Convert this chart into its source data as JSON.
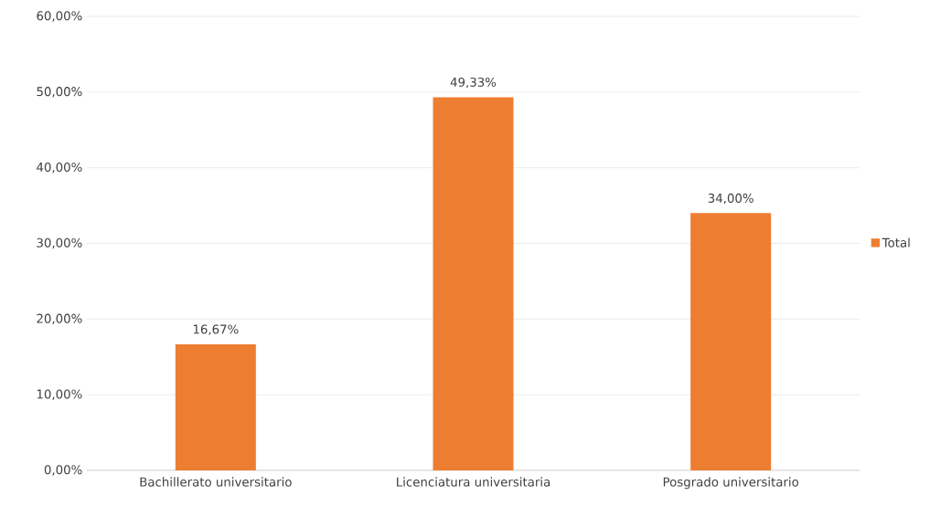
{
  "chart_data": {
    "type": "bar",
    "categories": [
      "Bachillerato universitario",
      "Licenciatura universitaria",
      "Posgrado universitario"
    ],
    "series": [
      {
        "name": "Total",
        "color": "#ed7d31",
        "values": [
          16.67,
          49.33,
          34.0
        ],
        "value_labels": [
          "16,67%",
          "49,33%",
          "34,00%"
        ]
      }
    ],
    "ylim": [
      0,
      60
    ],
    "yticks": [
      {
        "value": 0,
        "label": "0,00%"
      },
      {
        "value": 10,
        "label": "10,00%"
      },
      {
        "value": 20,
        "label": "20,00%"
      },
      {
        "value": 30,
        "label": "30,00%"
      },
      {
        "value": 40,
        "label": "40,00%"
      },
      {
        "value": 50,
        "label": "50,00%"
      },
      {
        "value": 60,
        "label": "60,00%"
      }
    ],
    "grid": "y",
    "legend": "right"
  }
}
